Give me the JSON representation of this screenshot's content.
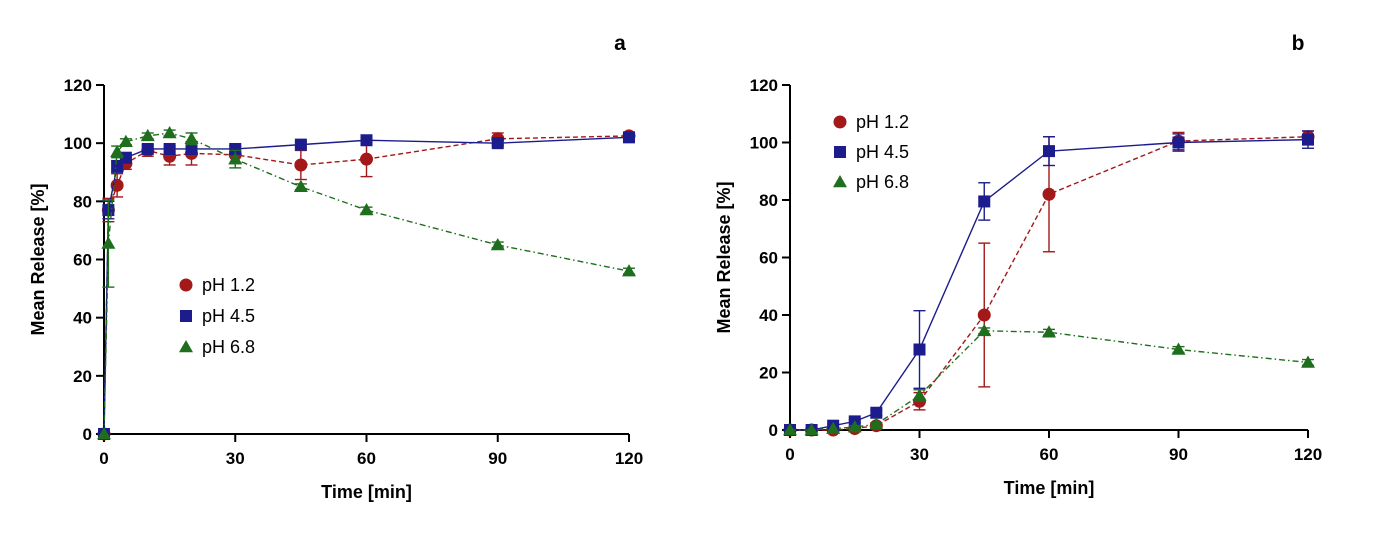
{
  "chart_data": [
    {
      "type": "line",
      "panel_label": "a",
      "xlabel": "Time [min]",
      "ylabel": "Mean Release [%]",
      "xlim": [
        0,
        120
      ],
      "ylim": [
        0,
        120
      ],
      "xticks": [
        0,
        30,
        60,
        90,
        120
      ],
      "yticks": [
        0,
        20,
        40,
        60,
        80,
        100,
        120
      ],
      "grid": false,
      "legend": "center-left",
      "series": [
        {
          "name": "pH 1.2",
          "color": "#a31818",
          "marker": "circle",
          "line_style": "dashed",
          "x": [
            0,
            1,
            3,
            5,
            10,
            15,
            20,
            30,
            45,
            60,
            90,
            120
          ],
          "y": [
            0,
            77,
            85.5,
            93,
            97.5,
            95.5,
            96.5,
            96,
            92.5,
            94.5,
            101.5,
            102.5
          ],
          "error": [
            0,
            4,
            4,
            2,
            2,
            3,
            4,
            3,
            5,
            6,
            2,
            1
          ]
        },
        {
          "name": "pH 4.5",
          "color": "#1c1c8c",
          "marker": "square",
          "line_style": "solid",
          "x": [
            0,
            1,
            3,
            5,
            10,
            15,
            20,
            30,
            45,
            60,
            90,
            120
          ],
          "y": [
            0,
            77,
            92,
            95,
            98,
            98,
            98,
            98,
            99.5,
            101,
            100,
            102
          ],
          "error": [
            0,
            3,
            2,
            1,
            1,
            1,
            1,
            1,
            1,
            1,
            1,
            1
          ]
        },
        {
          "name": "pH 6.8",
          "color": "#1e6e1e",
          "marker": "triangle",
          "line_style": "dash-dot",
          "x": [
            0,
            1,
            3,
            5,
            10,
            15,
            20,
            30,
            45,
            60,
            90,
            120
          ],
          "y": [
            0,
            65.5,
            97,
            100.5,
            102.5,
            103.5,
            101.5,
            94.5,
            85,
            77,
            65,
            56
          ],
          "error": [
            0,
            15,
            2,
            1,
            1,
            1,
            2,
            3,
            1,
            1,
            1,
            1
          ]
        }
      ]
    },
    {
      "type": "line",
      "panel_label": "b",
      "xlabel": "Time [min]",
      "ylabel": "Mean Release [%]",
      "xlim": [
        0,
        120
      ],
      "ylim": [
        0,
        120
      ],
      "xticks": [
        0,
        30,
        60,
        90,
        120
      ],
      "yticks": [
        0,
        20,
        40,
        60,
        80,
        100,
        120
      ],
      "grid": false,
      "legend": "top-left",
      "series": [
        {
          "name": "pH 1.2",
          "color": "#a31818",
          "marker": "circle",
          "line_style": "dashed",
          "x": [
            0,
            5,
            10,
            15,
            20,
            30,
            45,
            60,
            90,
            120
          ],
          "y": [
            0,
            0,
            0,
            0.5,
            1.5,
            10,
            40,
            82,
            100.5,
            102
          ],
          "error": [
            0,
            0,
            0,
            0.5,
            1,
            3,
            25,
            20,
            3,
            2
          ]
        },
        {
          "name": "pH 4.5",
          "color": "#1c1c8c",
          "marker": "square",
          "line_style": "solid",
          "x": [
            0,
            5,
            10,
            15,
            20,
            30,
            45,
            60,
            90,
            120
          ],
          "y": [
            0,
            0,
            1.5,
            3,
            6,
            28,
            79.5,
            97,
            100,
            101
          ],
          "error": [
            0,
            0,
            0.5,
            0.5,
            1,
            13.5,
            6.5,
            5,
            3,
            3
          ]
        },
        {
          "name": "pH 6.8",
          "color": "#1e6e1e",
          "marker": "triangle",
          "line_style": "dash-dot",
          "x": [
            0,
            5,
            10,
            15,
            20,
            30,
            45,
            60,
            90,
            120
          ],
          "y": [
            0,
            0,
            0.5,
            1,
            2,
            12,
            34.5,
            34,
            28,
            23.5
          ],
          "error": [
            0,
            0,
            0,
            0.5,
            0.5,
            2,
            1,
            1,
            1,
            1
          ]
        }
      ]
    }
  ]
}
